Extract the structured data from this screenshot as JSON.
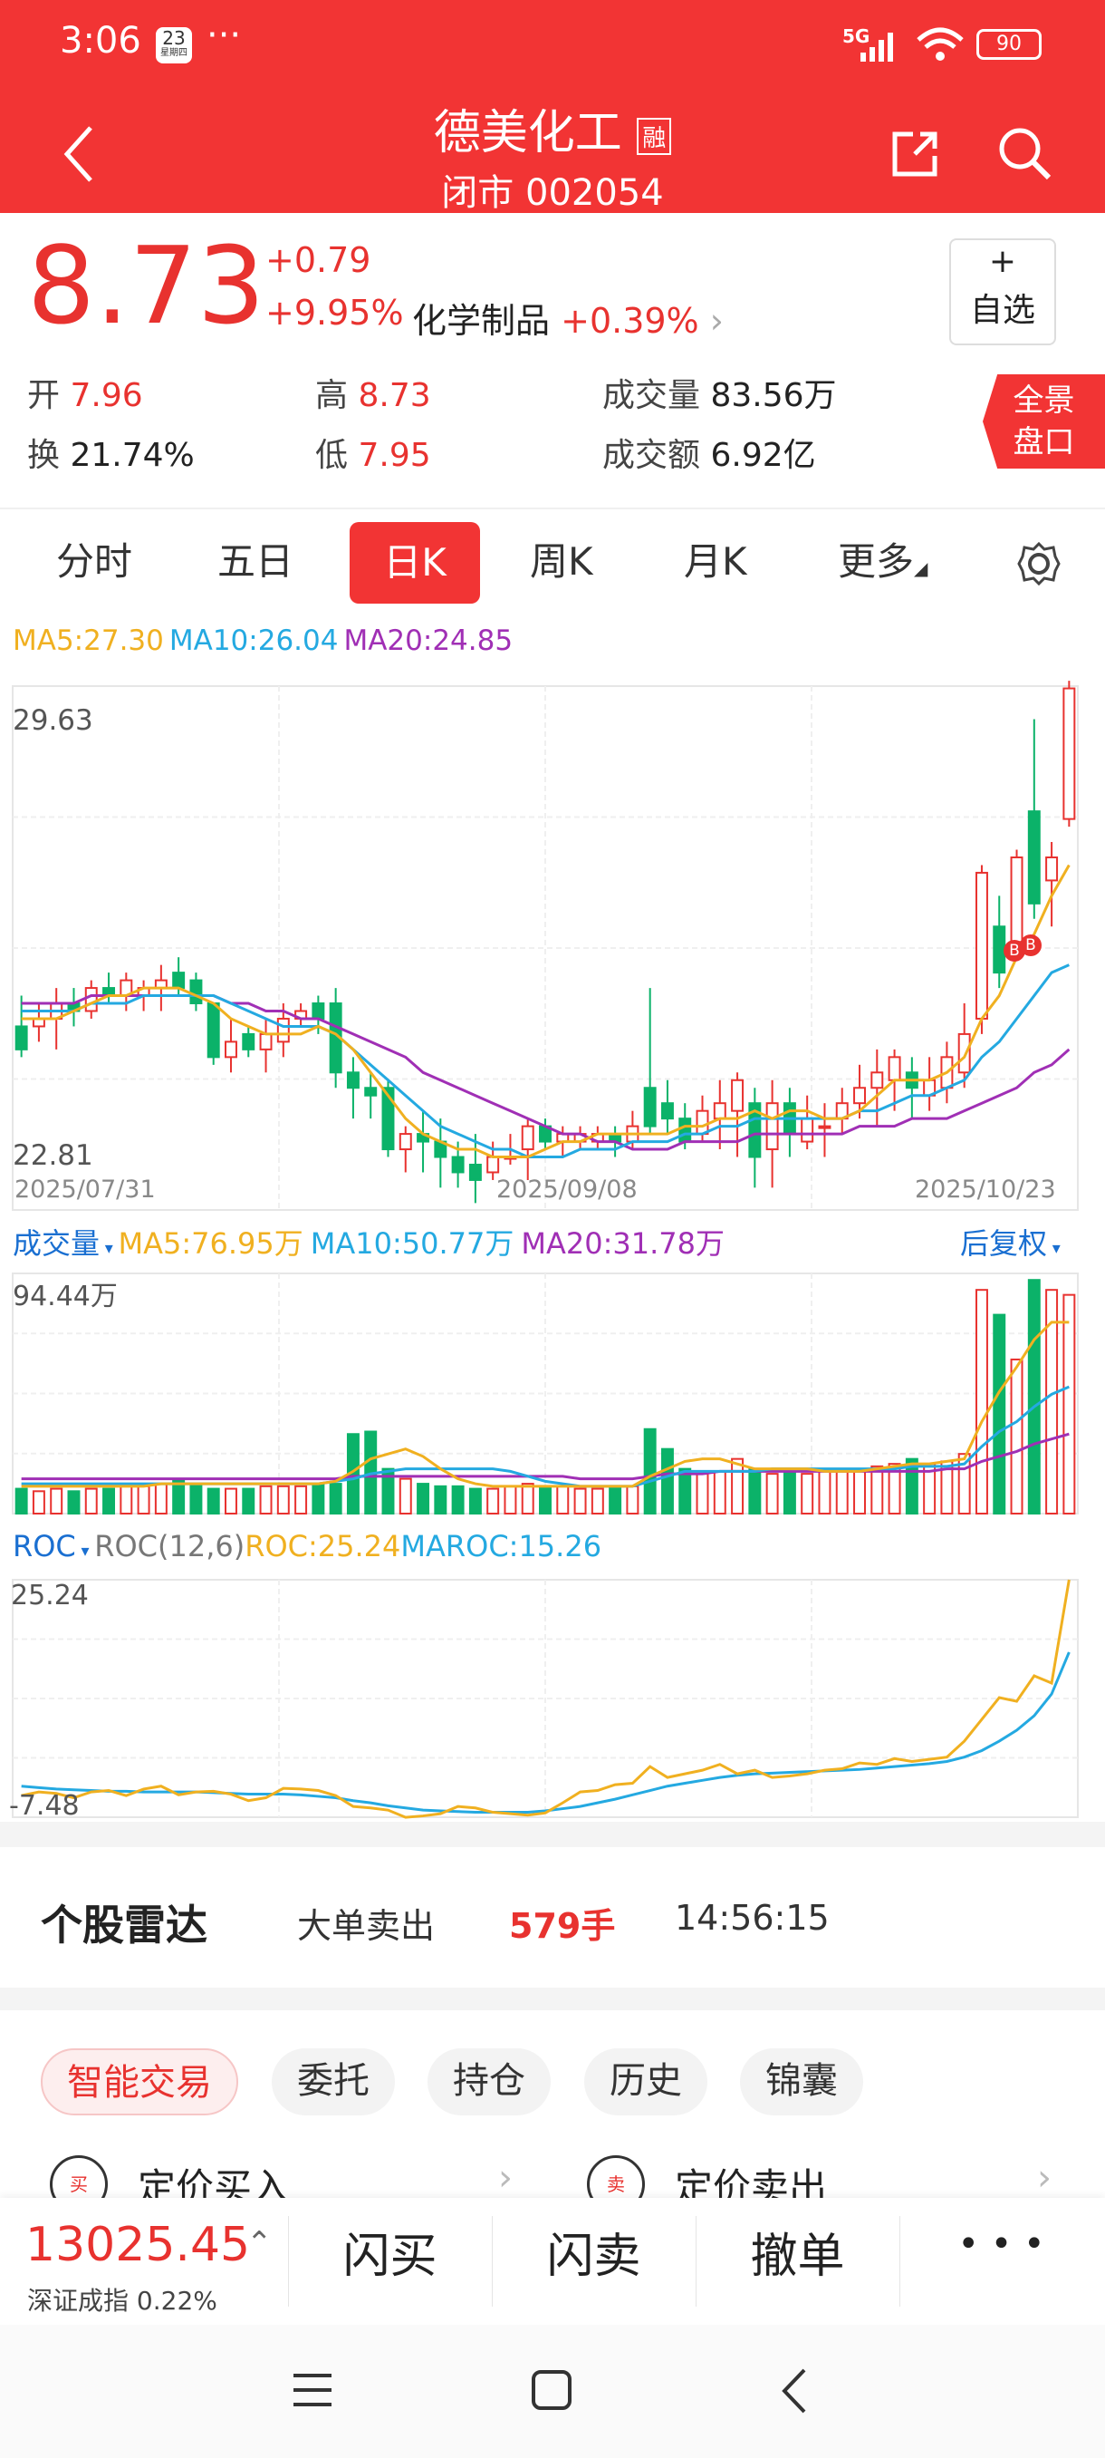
{
  "status": {
    "time": "3:06",
    "calendar_day": "23",
    "calendar_sub": "星期四",
    "dots": "···",
    "network": "5G",
    "battery": "90"
  },
  "header": {
    "title": "德美化工",
    "margin_badge": "融",
    "subtitle": "闭市 002054"
  },
  "quote": {
    "price": "8.73",
    "change": "+0.79",
    "change_pct": "+9.95%",
    "sector": "化学制品",
    "sector_pct": "+0.39%",
    "watch_plus": "+",
    "watch_label": "自选",
    "open_label": "开",
    "open": "7.96",
    "high_label": "高",
    "high": "8.73",
    "volume_label": "成交量",
    "volume": "83.56万",
    "turnover_label": "换",
    "turnover": "21.74%",
    "low_label": "低",
    "low": "7.95",
    "amount_label": "成交额",
    "amount": "6.92亿",
    "panorama_1": "全景",
    "panorama_2": "盘口"
  },
  "tabs": [
    "分时",
    "五日",
    "日K",
    "周K",
    "月K",
    "更多"
  ],
  "colors": {
    "up": "#e8322f",
    "down": "#0bb269",
    "ma5": "#f0b020",
    "ma10": "#24a9e1",
    "ma20": "#a02fb5",
    "header": "#f23434"
  },
  "kline_legend": {
    "ma5": "MA5:27.30",
    "ma10": "MA10:26.04",
    "ma20": "MA20:24.85"
  },
  "kline_axis": {
    "ymax": "29.63",
    "ymin": "22.81",
    "d1": "2025/07/31",
    "d2": "2025/09/08",
    "d3": "2025/10/23"
  },
  "vol_legend": {
    "title": "成交量",
    "ma5": "MA5:76.95万",
    "ma10": "MA10:50.77万",
    "ma20": "MA20:31.78万",
    "adjust": "后复权"
  },
  "vol_axis": {
    "ymax": "94.44万"
  },
  "roc_legend": {
    "title": "ROC",
    "param": "ROC(12,6)",
    "roc": "ROC:25.24",
    "maroc": "MAROC:15.26"
  },
  "roc_axis": {
    "ymax": "25.24",
    "ymin": "-7.48"
  },
  "markers": [
    "B",
    "B"
  ],
  "chart_data": {
    "type": "candlestick",
    "x_labels": [
      "2025/07/31",
      "2025/09/08",
      "2025/10/23"
    ],
    "ylim": [
      22.81,
      29.63
    ],
    "ohlc": [
      [
        25.2,
        25.6,
        24.8,
        24.9
      ],
      [
        25.2,
        25.5,
        25.0,
        25.3
      ],
      [
        25.3,
        25.7,
        24.9,
        25.5
      ],
      [
        25.5,
        25.7,
        25.2,
        25.4
      ],
      [
        25.4,
        25.8,
        25.3,
        25.7
      ],
      [
        25.7,
        25.9,
        25.5,
        25.6
      ],
      [
        25.6,
        25.9,
        25.4,
        25.8
      ],
      [
        25.6,
        25.8,
        25.4,
        25.7
      ],
      [
        25.7,
        26.0,
        25.4,
        25.8
      ],
      [
        25.9,
        26.1,
        25.6,
        25.7
      ],
      [
        25.8,
        25.9,
        25.4,
        25.5
      ],
      [
        25.5,
        25.5,
        24.7,
        24.8
      ],
      [
        24.8,
        25.3,
        24.6,
        25.0
      ],
      [
        25.1,
        25.2,
        24.8,
        24.9
      ],
      [
        24.9,
        25.3,
        24.6,
        25.1
      ],
      [
        25.0,
        25.5,
        24.8,
        25.3
      ],
      [
        25.3,
        25.5,
        25.2,
        25.4
      ],
      [
        25.5,
        25.6,
        25.1,
        25.3
      ],
      [
        25.5,
        25.7,
        24.4,
        24.6
      ],
      [
        24.6,
        24.8,
        24.0,
        24.4
      ],
      [
        24.4,
        24.6,
        24.0,
        24.3
      ],
      [
        24.4,
        24.5,
        23.5,
        23.6
      ],
      [
        23.6,
        23.9,
        23.3,
        23.8
      ],
      [
        23.8,
        24.1,
        23.3,
        23.7
      ],
      [
        23.7,
        24.0,
        23.1,
        23.5
      ],
      [
        23.5,
        23.7,
        23.1,
        23.3
      ],
      [
        23.4,
        23.8,
        22.9,
        23.2
      ],
      [
        23.3,
        23.7,
        23.2,
        23.5
      ],
      [
        23.5,
        23.8,
        23.4,
        23.5
      ],
      [
        23.6,
        24.0,
        23.2,
        23.9
      ],
      [
        23.9,
        24.0,
        23.6,
        23.7
      ],
      [
        23.7,
        23.9,
        23.5,
        23.8
      ],
      [
        23.7,
        23.9,
        23.6,
        23.8
      ],
      [
        23.7,
        23.9,
        23.6,
        23.8
      ],
      [
        23.8,
        23.9,
        23.5,
        23.7
      ],
      [
        23.7,
        24.1,
        23.6,
        23.9
      ],
      [
        24.4,
        25.7,
        23.8,
        23.9
      ],
      [
        24.2,
        24.5,
        23.8,
        24.0
      ],
      [
        24.0,
        24.2,
        23.6,
        23.7
      ],
      [
        23.8,
        24.3,
        23.7,
        24.1
      ],
      [
        24.0,
        24.5,
        23.6,
        24.2
      ],
      [
        24.1,
        24.6,
        23.5,
        24.5
      ],
      [
        24.2,
        24.4,
        23.1,
        23.5
      ],
      [
        23.6,
        24.5,
        23.1,
        24.2
      ],
      [
        24.2,
        24.4,
        23.5,
        23.8
      ],
      [
        23.7,
        24.3,
        23.6,
        24.0
      ],
      [
        23.9,
        24.2,
        23.5,
        23.9
      ],
      [
        24.0,
        24.4,
        23.8,
        24.2
      ],
      [
        24.2,
        24.7,
        24.0,
        24.4
      ],
      [
        24.4,
        24.9,
        23.9,
        24.6
      ],
      [
        24.5,
        24.9,
        24.1,
        24.8
      ],
      [
        24.6,
        24.8,
        24.0,
        24.4
      ],
      [
        24.3,
        24.8,
        24.1,
        24.5
      ],
      [
        24.4,
        25.0,
        24.2,
        24.8
      ],
      [
        24.6,
        25.5,
        24.4,
        25.1
      ],
      [
        25.3,
        27.3,
        25.1,
        27.2
      ],
      [
        26.5,
        26.9,
        25.7,
        25.9
      ],
      [
        26.3,
        27.5,
        26.1,
        27.4
      ],
      [
        28.0,
        29.2,
        26.6,
        26.8
      ],
      [
        27.1,
        27.6,
        26.5,
        27.4
      ],
      [
        27.9,
        29.7,
        27.8,
        29.6
      ]
    ],
    "ma5": [
      25.3,
      25.3,
      25.3,
      25.4,
      25.5,
      25.6,
      25.6,
      25.7,
      25.7,
      25.7,
      25.6,
      25.5,
      25.3,
      25.2,
      25.1,
      25.1,
      25.1,
      25.2,
      25.1,
      24.9,
      24.6,
      24.3,
      24.0,
      23.8,
      23.7,
      23.6,
      23.6,
      23.5,
      23.5,
      23.5,
      23.6,
      23.7,
      23.7,
      23.8,
      23.8,
      23.8,
      23.8,
      23.8,
      23.9,
      23.9,
      24.0,
      24.0,
      24.1,
      24.0,
      24.1,
      24.1,
      24.0,
      24.0,
      24.1,
      24.3,
      24.5,
      24.5,
      24.5,
      24.6,
      24.8,
      25.3,
      25.6,
      26.1,
      26.4,
      26.9,
      27.3
    ],
    "ma10": [
      25.4,
      25.4,
      25.4,
      25.4,
      25.5,
      25.5,
      25.5,
      25.6,
      25.6,
      25.6,
      25.6,
      25.6,
      25.5,
      25.4,
      25.3,
      25.2,
      25.2,
      25.2,
      25.1,
      24.9,
      24.7,
      24.5,
      24.3,
      24.1,
      23.9,
      23.8,
      23.7,
      23.6,
      23.6,
      23.5,
      23.5,
      23.5,
      23.6,
      23.6,
      23.6,
      23.7,
      23.7,
      23.7,
      23.8,
      23.8,
      23.9,
      23.9,
      24.0,
      24.0,
      24.0,
      24.0,
      24.0,
      24.0,
      24.1,
      24.1,
      24.2,
      24.3,
      24.3,
      24.4,
      24.5,
      24.8,
      25.0,
      25.3,
      25.6,
      25.9,
      26.0
    ],
    "ma20": [
      25.5,
      25.5,
      25.5,
      25.5,
      25.6,
      25.6,
      25.6,
      25.6,
      25.6,
      25.6,
      25.6,
      25.6,
      25.5,
      25.5,
      25.4,
      25.4,
      25.3,
      25.3,
      25.2,
      25.1,
      25.0,
      24.9,
      24.8,
      24.6,
      24.5,
      24.4,
      24.3,
      24.2,
      24.1,
      24.0,
      23.9,
      23.8,
      23.8,
      23.7,
      23.7,
      23.6,
      23.6,
      23.6,
      23.7,
      23.7,
      23.7,
      23.7,
      23.8,
      23.8,
      23.8,
      23.8,
      23.8,
      23.8,
      23.9,
      23.9,
      23.9,
      24.0,
      24.0,
      24.0,
      24.1,
      24.2,
      24.3,
      24.4,
      24.6,
      24.7,
      24.9
    ],
    "volume": [
      10,
      9,
      10,
      9,
      10,
      10,
      11,
      11,
      12,
      14,
      12,
      10,
      10,
      10,
      11,
      11,
      11,
      12,
      12,
      32,
      33,
      18,
      14,
      12,
      11,
      11,
      10,
      10,
      11,
      12,
      11,
      11,
      10,
      10,
      11,
      11,
      34,
      26,
      18,
      16,
      17,
      22,
      18,
      16,
      18,
      16,
      17,
      17,
      18,
      19,
      20,
      22,
      20,
      21,
      24,
      90,
      80,
      62,
      94,
      90,
      88
    ],
    "vol_ma5": [
      11,
      11,
      11,
      11,
      11,
      11,
      11,
      11,
      12,
      12,
      12,
      12,
      12,
      12,
      12,
      12,
      12,
      12,
      13,
      17,
      22,
      24,
      26,
      23,
      18,
      14,
      12,
      11,
      11,
      11,
      11,
      11,
      11,
      11,
      11,
      11,
      15,
      18,
      21,
      22,
      22,
      20,
      18,
      18,
      18,
      18,
      17,
      17,
      17,
      18,
      19,
      20,
      20,
      21,
      22,
      37,
      49,
      59,
      70,
      77,
      77
    ],
    "vol_ma10": [
      12,
      12,
      12,
      12,
      12,
      12,
      12,
      12,
      12,
      12,
      12,
      12,
      12,
      12,
      12,
      12,
      12,
      12,
      13,
      14,
      16,
      17,
      18,
      18,
      18,
      18,
      18,
      18,
      17,
      15,
      13,
      12,
      11,
      11,
      11,
      11,
      13,
      15,
      17,
      17,
      17,
      17,
      17,
      18,
      18,
      18,
      18,
      18,
      18,
      18,
      18,
      19,
      19,
      19,
      20,
      27,
      33,
      37,
      43,
      48,
      51
    ],
    "vol_ma20": [
      14,
      14,
      14,
      14,
      14,
      14,
      14,
      14,
      14,
      14,
      14,
      14,
      14,
      14,
      14,
      14,
      14,
      14,
      14,
      15,
      15,
      15,
      15,
      15,
      15,
      15,
      15,
      15,
      15,
      15,
      15,
      15,
      14,
      14,
      14,
      14,
      15,
      16,
      16,
      16,
      17,
      17,
      17,
      17,
      17,
      17,
      17,
      17,
      17,
      17,
      17,
      17,
      17,
      18,
      18,
      21,
      23,
      25,
      28,
      30,
      32
    ],
    "roc": [
      -4.5,
      -4.0,
      -4.2,
      -4.8,
      -4.0,
      -3.8,
      -4.5,
      -3.6,
      -3.2,
      -4.4,
      -4.0,
      -3.9,
      -4.3,
      -5.2,
      -4.8,
      -3.5,
      -3.6,
      -3.8,
      -4.5,
      -6.0,
      -6.2,
      -6.5,
      -7.5,
      -7.3,
      -7.0,
      -6.0,
      -6.2,
      -6.8,
      -7.0,
      -7.2,
      -6.9,
      -5.5,
      -4.0,
      -3.8,
      -3.0,
      -2.8,
      -0.5,
      -2.0,
      -1.5,
      -1.0,
      -0.2,
      -1.5,
      -1.0,
      -2.0,
      -1.8,
      -1.5,
      -1.0,
      -0.8,
      0,
      -0.2,
      0.6,
      0.2,
      0.5,
      0.8,
      3,
      6,
      9,
      8.5,
      12,
      11,
      25.24
    ],
    "maroc": [
      -3.2,
      -3.4,
      -3.6,
      -3.7,
      -3.8,
      -3.9,
      -3.9,
      -4.0,
      -4.0,
      -4.0,
      -4.0,
      -4.1,
      -4.2,
      -4.3,
      -4.3,
      -4.3,
      -4.4,
      -4.6,
      -4.8,
      -5.2,
      -5.5,
      -5.9,
      -6.2,
      -6.5,
      -6.6,
      -6.7,
      -6.8,
      -6.8,
      -6.8,
      -6.8,
      -6.6,
      -6.3,
      -6.0,
      -5.5,
      -5.0,
      -4.4,
      -3.8,
      -3.2,
      -2.8,
      -2.4,
      -2.0,
      -1.7,
      -1.5,
      -1.4,
      -1.3,
      -1.2,
      -1.1,
      -1.0,
      -0.9,
      -0.7,
      -0.5,
      -0.3,
      -0.1,
      0.2,
      0.8,
      1.7,
      3.0,
      4.5,
      6.5,
      9.5,
      15.26
    ],
    "roc_ylim": [
      -7.48,
      25.24
    ]
  },
  "radar": {
    "title": "个股雷达",
    "event": "大单卖出",
    "qty": "579手",
    "time": "14:56:15"
  },
  "trade_chips": [
    "智能交易",
    "委托",
    "持仓",
    "历史",
    "锦囊"
  ],
  "trade_actions": {
    "buy": "定价买入",
    "sell": "定价卖出",
    "buy_icon": "买",
    "sell_icon": "卖"
  },
  "index": {
    "value": "13025.45",
    "name": "深证成指",
    "pct": "0.22%"
  },
  "bottom_buttons": {
    "flash_buy": "闪买",
    "flash_sell": "闪卖",
    "cancel": "撤单",
    "more": "• • •"
  }
}
